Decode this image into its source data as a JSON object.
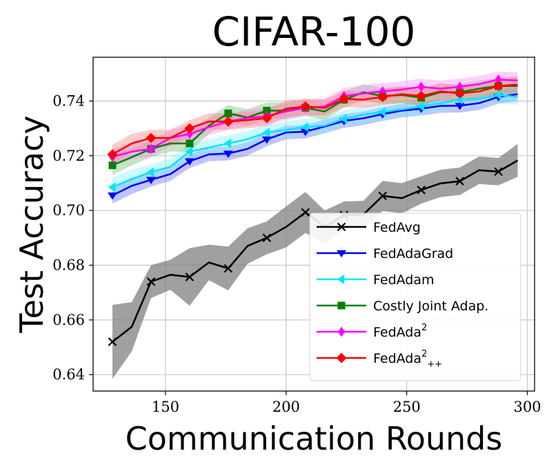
{
  "chart_data": {
    "type": "line",
    "title": "CIFAR-100",
    "xlabel": "Communication Rounds",
    "ylabel": "Test Accuracy",
    "xlim": [
      120,
      303
    ],
    "ylim": [
      0.634,
      0.756
    ],
    "grid": true,
    "legend_position": "lower-right",
    "x_ticks": [
      150,
      200,
      250,
      300
    ],
    "x_tick_labels": [
      "150",
      "200",
      "250",
      "300"
    ],
    "y_ticks": [
      0.64,
      0.66,
      0.68,
      0.7,
      0.72,
      0.74
    ],
    "y_tick_labels": [
      "0.64",
      "0.66",
      "0.68",
      "0.70",
      "0.72",
      "0.74"
    ],
    "x": [
      128,
      136,
      144,
      152,
      160,
      168,
      176,
      184,
      192,
      200,
      208,
      216,
      224,
      232,
      240,
      248,
      256,
      264,
      272,
      280,
      288,
      296
    ],
    "marker_every": 2,
    "series": [
      {
        "name": "FedAvg",
        "legend_label": "FedAvg",
        "color": "#000000",
        "band_color": "#808080",
        "marker": "x",
        "values": [
          0.652,
          0.6575,
          0.674,
          0.6765,
          0.6757,
          0.681,
          0.6788,
          0.687,
          0.69,
          0.694,
          0.6993,
          0.694,
          0.6983,
          0.6985,
          0.7053,
          0.7045,
          0.7075,
          0.7099,
          0.7107,
          0.7147,
          0.7142,
          0.7183
        ],
        "band": [
          0.0135,
          0.009,
          0.006,
          0.0055,
          0.0105,
          0.0065,
          0.008,
          0.0065,
          0.006,
          0.0075,
          0.0075,
          0.006,
          0.005,
          0.005,
          0.0055,
          0.0055,
          0.005,
          0.005,
          0.005,
          0.005,
          0.005,
          0.006
        ]
      },
      {
        "name": "FedAdaGrad",
        "legend_label": "FedAdaGrad",
        "color": "#0000ff",
        "band_color": "#6a6aff",
        "marker": "triangle-down",
        "values": [
          0.7055,
          0.709,
          0.7112,
          0.7133,
          0.718,
          0.7205,
          0.7208,
          0.7225,
          0.726,
          0.7285,
          0.7288,
          0.7307,
          0.7327,
          0.7337,
          0.7352,
          0.7365,
          0.7372,
          0.7382,
          0.7383,
          0.7392,
          0.7415,
          0.7425
        ],
        "band": [
          0.003,
          0.003,
          0.0025,
          0.0025,
          0.0025,
          0.0025,
          0.0025,
          0.0025,
          0.0025,
          0.0025,
          0.0025,
          0.0025,
          0.0025,
          0.0025,
          0.0025,
          0.0025,
          0.0025,
          0.0025,
          0.0025,
          0.0025,
          0.0025,
          0.0025
        ]
      },
      {
        "name": "FedAdam",
        "legend_label": "FedAdam",
        "color": "#00e5ff",
        "band_color": "#7ff3ff",
        "marker": "triangle-left",
        "values": [
          0.7085,
          0.7115,
          0.714,
          0.716,
          0.7215,
          0.723,
          0.7245,
          0.726,
          0.7285,
          0.7295,
          0.7305,
          0.731,
          0.7335,
          0.735,
          0.736,
          0.737,
          0.738,
          0.7392,
          0.7405,
          0.7408,
          0.7422,
          0.7415
        ],
        "band": [
          0.0035,
          0.0035,
          0.003,
          0.003,
          0.003,
          0.003,
          0.003,
          0.003,
          0.003,
          0.003,
          0.003,
          0.003,
          0.003,
          0.003,
          0.003,
          0.003,
          0.003,
          0.003,
          0.003,
          0.003,
          0.003,
          0.003
        ]
      },
      {
        "name": "Costly Joint Adap.",
        "legend_label": "Costly Joint Adap.",
        "color": "#008000",
        "band_color": "#6fbf6f",
        "marker": "square",
        "values": [
          0.7165,
          0.7195,
          0.7225,
          0.7245,
          0.7245,
          0.731,
          0.7355,
          0.734,
          0.7365,
          0.7365,
          0.7375,
          0.7362,
          0.7405,
          0.7432,
          0.7418,
          0.7422,
          0.7412,
          0.7432,
          0.7432,
          0.7445,
          0.7455,
          0.7455
        ],
        "band": [
          0.0035,
          0.003,
          0.003,
          0.003,
          0.003,
          0.003,
          0.003,
          0.003,
          0.003,
          0.003,
          0.003,
          0.003,
          0.003,
          0.003,
          0.003,
          0.003,
          0.003,
          0.003,
          0.003,
          0.003,
          0.003,
          0.003
        ]
      },
      {
        "name": "FedAda2",
        "legend_label": "FedAda",
        "legend_sup": "2",
        "color": "#ff00ff",
        "band_color": "#ff8cff",
        "marker": "diamond-thin",
        "values": [
          0.7195,
          0.7215,
          0.7225,
          0.7265,
          0.728,
          0.7305,
          0.7325,
          0.7338,
          0.7345,
          0.7362,
          0.7375,
          0.738,
          0.7418,
          0.7428,
          0.7435,
          0.7442,
          0.7452,
          0.7445,
          0.7452,
          0.7462,
          0.7478,
          0.7475
        ],
        "band": [
          0.003,
          0.003,
          0.003,
          0.003,
          0.003,
          0.003,
          0.003,
          0.003,
          0.003,
          0.003,
          0.003,
          0.003,
          0.003,
          0.003,
          0.003,
          0.003,
          0.003,
          0.003,
          0.003,
          0.003,
          0.003,
          0.003
        ]
      },
      {
        "name": "FedAda2++",
        "legend_label": "FedAda",
        "legend_sup": "2",
        "legend_sub": "++",
        "color": "#ff0000",
        "band_color": "#ff8080",
        "marker": "diamond",
        "values": [
          0.7205,
          0.7245,
          0.7265,
          0.7265,
          0.73,
          0.7325,
          0.7325,
          0.733,
          0.7338,
          0.7372,
          0.738,
          0.7375,
          0.7408,
          0.7405,
          0.7415,
          0.7425,
          0.7418,
          0.7435,
          0.7428,
          0.7435,
          0.7455,
          0.746
        ],
        "band": [
          0.0035,
          0.0035,
          0.003,
          0.003,
          0.003,
          0.003,
          0.003,
          0.003,
          0.003,
          0.003,
          0.003,
          0.003,
          0.003,
          0.003,
          0.003,
          0.003,
          0.003,
          0.003,
          0.003,
          0.003,
          0.003,
          0.003
        ]
      }
    ]
  }
}
